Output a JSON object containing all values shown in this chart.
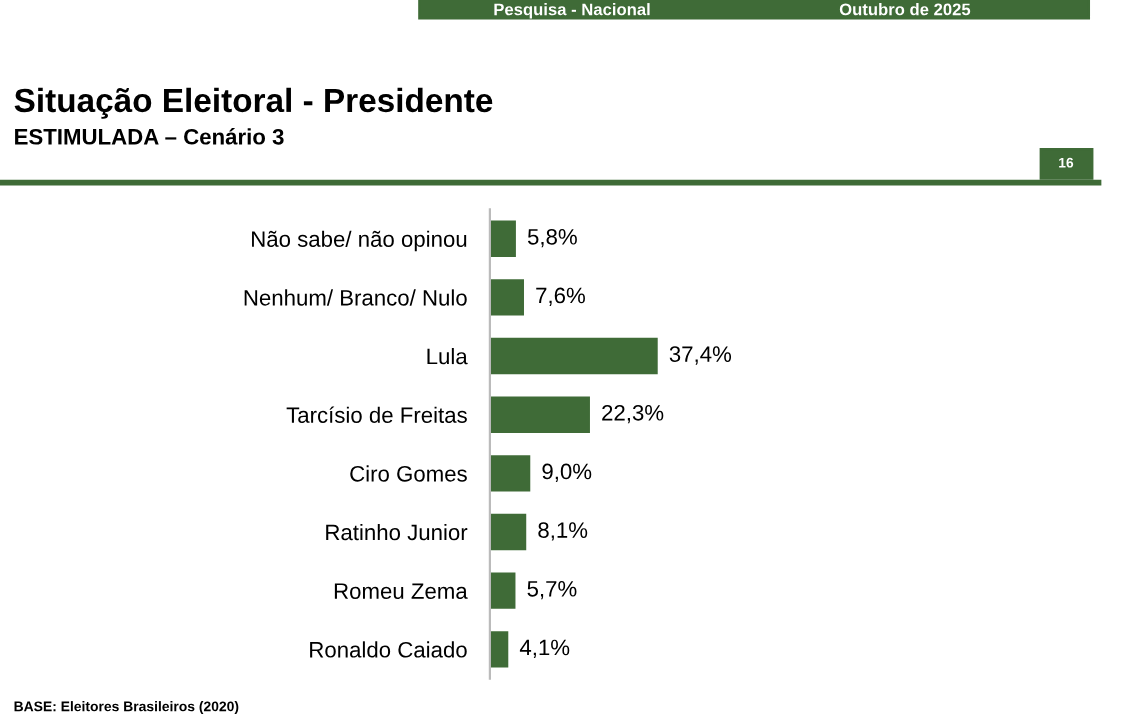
{
  "chart_data": {
    "type": "bar",
    "orientation": "horizontal",
    "title": "Situação Eleitoral - Presidente",
    "subtitle": "ESTIMULADA – Cenário 3",
    "categories": [
      "Não sabe/ não opinou",
      "Nenhum/ Branco/ Nulo",
      "Lula",
      "Tarcísio de Freitas",
      "Ciro Gomes",
      "Ratinho Junior",
      "Romeu Zema",
      "Ronaldo Caiado"
    ],
    "values": [
      5.8,
      7.6,
      37.4,
      22.3,
      9.0,
      8.1,
      5.7,
      4.1
    ],
    "value_labels": [
      "5,8%",
      "7,6%",
      "37,4%",
      "22,3%",
      "9,0%",
      "8,1%",
      "5,7%",
      "4,1%"
    ],
    "color": "#3f6b37",
    "tick_labels": "y",
    "annotations": [
      "Pesquisa - Nacional",
      "Outubro de 2025",
      "16",
      "BASE: Eleitores Brasileiros (2020)"
    ]
  }
}
